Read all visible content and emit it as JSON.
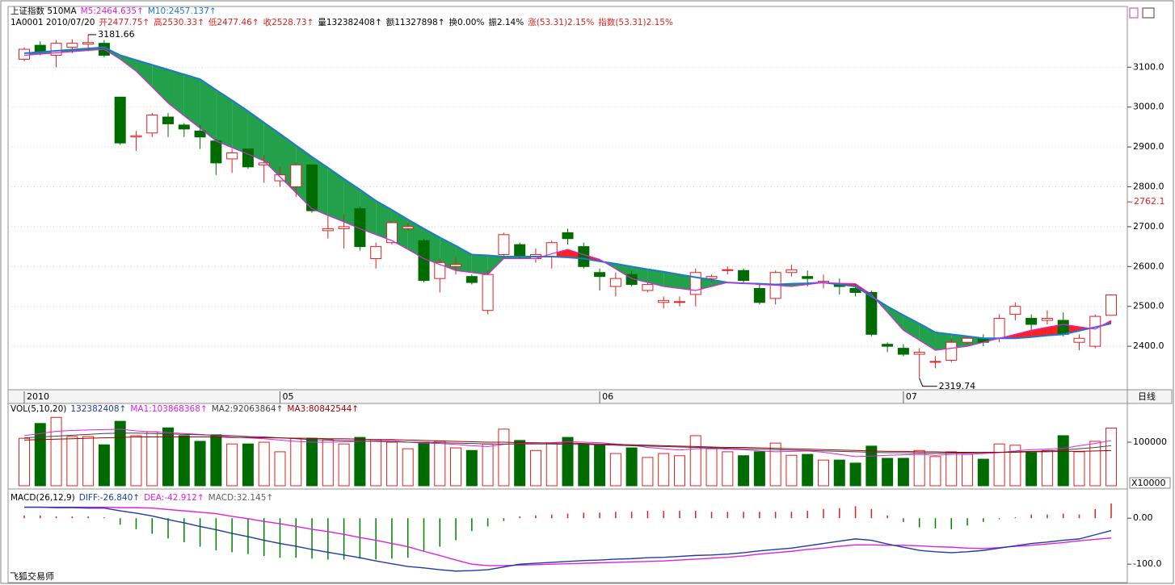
{
  "footer": "飞狐交易师",
  "period": "日线",
  "chart_data": [
    {
      "type": "candlestick",
      "legend": [
        {
          "text": "上证指数 510MA",
          "color": "#000000"
        },
        {
          "text": "M5:2464.635↑",
          "color": "#e020e0"
        },
        {
          "text": "M10:2457.137↑",
          "color": "#1e78d0"
        }
      ],
      "info": [
        {
          "text": "1A0001 2010/07/20",
          "color": "#000000"
        },
        {
          "text": "开2477.75↑",
          "color": "#e02020"
        },
        {
          "text": "高2530.33↑",
          "color": "#e02020"
        },
        {
          "text": "低2477.46↑",
          "color": "#e02020"
        },
        {
          "text": "收2528.73↑",
          "color": "#e02020"
        },
        {
          "text": "量132382408↑",
          "color": "#000000"
        },
        {
          "text": "额11327898↑",
          "color": "#000000"
        },
        {
          "text": "换0.00%",
          "color": "#000000"
        },
        {
          "text": "振2.14%",
          "color": "#000000"
        },
        {
          "text": "涨(53.31)2.15%",
          "color": "#e02020"
        },
        {
          "text": "指数(53.31)2.15%",
          "color": "#e02020"
        }
      ],
      "categories": [
        "2010",
        null,
        null,
        null,
        null,
        null,
        null,
        null,
        null,
        null,
        null,
        null,
        null,
        null,
        null,
        null,
        "05",
        null,
        null,
        null,
        null,
        null,
        null,
        null,
        null,
        null,
        null,
        null,
        null,
        null,
        null,
        null,
        null,
        null,
        null,
        null,
        "06",
        null,
        null,
        null,
        null,
        null,
        null,
        null,
        null,
        null,
        null,
        null,
        null,
        null,
        null,
        null,
        null,
        null,
        null,
        "07",
        null,
        null,
        null,
        null,
        null,
        null,
        null,
        null,
        null,
        null,
        null,
        null,
        null
      ],
      "open": [
        3120,
        3155,
        3130,
        3150,
        3158,
        3160,
        3025,
        2925,
        2935,
        2975,
        2955,
        2940,
        2915,
        2870,
        2895,
        2855,
        2815,
        2800,
        2855,
        2690,
        2695,
        2745,
        2620,
        2660,
        2695,
        2665,
        2570,
        2600,
        2575,
        2490,
        2630,
        2655,
        2620,
        2625,
        2685,
        2650,
        2585,
        2550,
        2580,
        2540,
        2510,
        2510,
        2530,
        2570,
        2590,
        2590,
        2545,
        2520,
        2585,
        2575,
        2560,
        2555,
        2545,
        2535,
        2405,
        2395,
        2380,
        2360,
        2365,
        2410,
        2420,
        2420,
        2480,
        2470,
        2465,
        2465,
        2410,
        2400,
        2477.75
      ],
      "high": [
        3150,
        3165,
        3168,
        3170,
        3181.66,
        3168,
        3025,
        2940,
        2985,
        2985,
        2960,
        2955,
        2920,
        2895,
        2895,
        2880,
        2850,
        2860,
        2855,
        2730,
        2730,
        2750,
        2660,
        2715,
        2710,
        2670,
        2620,
        2625,
        2580,
        2590,
        2685,
        2660,
        2645,
        2665,
        2695,
        2660,
        2595,
        2585,
        2590,
        2560,
        2525,
        2525,
        2595,
        2580,
        2600,
        2595,
        2555,
        2590,
        2605,
        2590,
        2580,
        2570,
        2555,
        2540,
        2410,
        2405,
        2395,
        2375,
        2420,
        2425,
        2430,
        2480,
        2510,
        2480,
        2490,
        2485,
        2430,
        2480,
        2530.33
      ],
      "low": [
        3115,
        3130,
        3100,
        3135,
        3140,
        3125,
        2905,
        2890,
        2925,
        2925,
        2925,
        2895,
        2830,
        2835,
        2845,
        2810,
        2800,
        2775,
        2735,
        2670,
        2645,
        2640,
        2595,
        2655,
        2690,
        2560,
        2535,
        2580,
        2555,
        2480,
        2620,
        2620,
        2610,
        2595,
        2655,
        2595,
        2540,
        2525,
        2550,
        2535,
        2495,
        2500,
        2500,
        2560,
        2580,
        2560,
        2505,
        2505,
        2575,
        2550,
        2545,
        2530,
        2525,
        2425,
        2385,
        2375,
        2319.74,
        2345,
        2360,
        2405,
        2400,
        2410,
        2465,
        2440,
        2455,
        2425,
        2390,
        2395,
        2477.46
      ],
      "close": [
        3145,
        3140,
        3160,
        3160,
        3162,
        3130,
        2910,
        2928,
        2980,
        2958,
        2945,
        2925,
        2860,
        2885,
        2850,
        2860,
        2830,
        2855,
        2740,
        2695,
        2700,
        2650,
        2650,
        2710,
        2700,
        2565,
        2610,
        2605,
        2560,
        2580,
        2680,
        2625,
        2630,
        2660,
        2670,
        2600,
        2575,
        2570,
        2555,
        2555,
        2515,
        2512,
        2585,
        2575,
        2592,
        2565,
        2510,
        2585,
        2592,
        2570,
        2563,
        2550,
        2535,
        2430,
        2400,
        2380,
        2385,
        2362,
        2410,
        2420,
        2410,
        2470,
        2500,
        2455,
        2470,
        2430,
        2420,
        2475,
        2528.73
      ],
      "ma5": [
        3130,
        3133,
        3136,
        3139,
        3142,
        3145,
        3120,
        3090,
        3050,
        3010,
        2978,
        2947,
        2915,
        2898,
        2882,
        2865,
        2825,
        2785,
        2745,
        2728,
        2712,
        2695,
        2680,
        2665,
        2643,
        2620,
        2605,
        2590,
        2585,
        2580,
        2620,
        2620,
        2620,
        2632,
        2643,
        2630,
        2618,
        2594,
        2570,
        2560,
        2550,
        2545,
        2540,
        2550,
        2560,
        2558,
        2555,
        2553,
        2550,
        2555,
        2560,
        2558,
        2557,
        2530,
        2485,
        2440,
        2415,
        2390,
        2395,
        2400,
        2410,
        2420,
        2430,
        2440,
        2448,
        2455,
        2449,
        2443,
        2464.635
      ],
      "ma10": [
        3135,
        3138,
        3141,
        3144,
        3147,
        3150,
        3130,
        3118,
        3106,
        3094,
        3082,
        3070,
        3043,
        3017,
        2990,
        2961,
        2933,
        2904,
        2875,
        2848,
        2820,
        2793,
        2765,
        2742,
        2718,
        2695,
        2673,
        2652,
        2630,
        2628,
        2625,
        2625,
        2625,
        2625,
        2623,
        2620,
        2613,
        2607,
        2600,
        2593,
        2587,
        2580,
        2573,
        2567,
        2560,
        2558,
        2557,
        2555,
        2557,
        2558,
        2560,
        2555,
        2550,
        2525,
        2500,
        2478,
        2457,
        2435,
        2430,
        2425,
        2420,
        2420,
        2420,
        2423,
        2427,
        2430,
        2439,
        2448,
        2457.137
      ],
      "ma5_color": "#e020e0",
      "ma10_color": "#1e78d0",
      "up_color": "#e02020",
      "down_color": "#006b00",
      "ribbon_down_color": "#22a04a",
      "ribbon_up_color": "#ff2020",
      "price_marker": 2762.1,
      "ylim": [
        2291,
        3252.4
      ],
      "yticks": [
        {
          "value": 3100,
          "label": "3100.0"
        },
        {
          "value": 3000,
          "label": "3000.0"
        },
        {
          "value": 2900,
          "label": "2900.0"
        },
        {
          "value": 2800,
          "label": "2800.0"
        },
        {
          "value": 2700,
          "label": "2700.0"
        },
        {
          "value": 2600,
          "label": "2600.0"
        },
        {
          "value": 2500,
          "label": "2500.0"
        },
        {
          "value": 2400,
          "label": "2400.0"
        }
      ],
      "grid": true
    },
    {
      "type": "volume",
      "legend": [
        {
          "text": "VOL(5,10,20)",
          "color": "#000000"
        },
        {
          "text": "132382408↑",
          "color": "#1e3ca0"
        },
        {
          "text": "MA1:103868368↑",
          "color": "#e020e0"
        },
        {
          "text": "MA2:92063864↑",
          "color": "#404040"
        },
        {
          "text": "MA3:80842544↑",
          "color": "#a00000"
        }
      ],
      "values": [
        109000,
        143000,
        157000,
        113000,
        113000,
        94000,
        148000,
        115000,
        124000,
        133000,
        115000,
        102000,
        117000,
        96000,
        96000,
        100000,
        78000,
        109000,
        109000,
        106000,
        96000,
        111000,
        106000,
        100000,
        85000,
        100000,
        102000,
        87000,
        81000,
        96000,
        130000,
        104000,
        81000,
        98000,
        111000,
        96000,
        93000,
        74000,
        87000,
        65000,
        74000,
        69000,
        115000,
        85000,
        78000,
        69000,
        78000,
        98000,
        70000,
        72000,
        59000,
        59000,
        52000,
        91000,
        63000,
        63000,
        81000,
        67000,
        78000,
        72000,
        61000,
        96000,
        93000,
        76000,
        81000,
        115000,
        78000,
        102000,
        132382
      ],
      "lines": [
        {
          "color": "#e020e0",
          "values": [
            115000,
            120000,
            125000,
            127000,
            128000,
            129000,
            130000,
            126000,
            124000,
            122000,
            120000,
            118000,
            115000,
            112000,
            110000,
            108000,
            105000,
            102000,
            100000,
            100000,
            101000,
            102000,
            103000,
            104000,
            100000,
            98000,
            97000,
            95000,
            92000,
            90000,
            95000,
            97000,
            98000,
            99000,
            101000,
            100000,
            99000,
            96000,
            93000,
            88000,
            85000,
            82000,
            85000,
            86000,
            84000,
            83000,
            80000,
            78000,
            79000,
            80000,
            77000,
            72000,
            67000,
            68000,
            70000,
            71000,
            72000,
            70000,
            72000,
            72000,
            74000,
            76000,
            80000,
            83000,
            84000,
            86000,
            92000,
            97000,
            103868
          ]
        },
        {
          "color": "#404040",
          "values": [
            110000,
            112000,
            114000,
            116000,
            118000,
            120000,
            121000,
            121000,
            120000,
            119000,
            118000,
            117000,
            116000,
            115000,
            113000,
            112000,
            110000,
            108000,
            106000,
            105000,
            104000,
            103000,
            102000,
            101000,
            100000,
            100000,
            99000,
            98000,
            97000,
            96000,
            96000,
            96000,
            96000,
            96000,
            95000,
            95000,
            94000,
            93000,
            92000,
            91000,
            90000,
            89000,
            88000,
            87000,
            86000,
            85000,
            84000,
            83000,
            82000,
            81000,
            80000,
            79000,
            78000,
            77000,
            76000,
            76000,
            75000,
            75000,
            75000,
            75000,
            76000,
            77000,
            78000,
            79000,
            80000,
            82000,
            85000,
            88000,
            92063
          ]
        },
        {
          "color": "#a00000",
          "values": [
            105000,
            106000,
            107000,
            108000,
            109000,
            110000,
            111000,
            112000,
            112000,
            112000,
            112000,
            112000,
            112000,
            111000,
            111000,
            110000,
            110000,
            109000,
            109000,
            108000,
            108000,
            107000,
            106000,
            106000,
            105000,
            104000,
            103000,
            102000,
            101000,
            100000,
            100000,
            99000,
            99000,
            98000,
            98000,
            97000,
            96000,
            95000,
            94000,
            93000,
            92000,
            91000,
            90000,
            89000,
            88000,
            88000,
            87000,
            86000,
            85000,
            84000,
            83000,
            82000,
            81000,
            80000,
            79000,
            79000,
            78000,
            78000,
            77000,
            77000,
            77000,
            77000,
            77000,
            78000,
            78000,
            79000,
            79000,
            80000,
            80842
          ]
        }
      ],
      "unit": "X10000",
      "ylim": [
        0,
        189000
      ],
      "yticks": [
        100000
      ]
    },
    {
      "type": "macd",
      "legend": [
        {
          "text": "MACD(26,12,9)",
          "color": "#000000"
        },
        {
          "text": "DIFF:-26.840↑",
          "color": "#1e3ca0"
        },
        {
          "text": "DEA:-42.912↑",
          "color": "#e020e0"
        },
        {
          "text": "MACD:32.145↑",
          "color": "#606060"
        }
      ],
      "diff": [
        24,
        24,
        23,
        23,
        22,
        22,
        16,
        11,
        5,
        -3,
        -10,
        -18,
        -25,
        -33,
        -40,
        -48,
        -55,
        -61,
        -68,
        -74,
        -80,
        -86,
        -93,
        -99,
        -105,
        -108,
        -112,
        -115,
        -114,
        -112,
        -106,
        -100,
        -98,
        -96,
        -94,
        -92,
        -91,
        -89,
        -88,
        -86,
        -85,
        -83,
        -81,
        -80,
        -78,
        -75,
        -71,
        -68,
        -65,
        -60,
        -55,
        -50,
        -45,
        -48,
        -56,
        -63,
        -70,
        -73,
        -75,
        -73,
        -70,
        -65,
        -60,
        -55,
        -52,
        -48,
        -45,
        -36,
        -26.84
      ],
      "dea": [
        24,
        24,
        24,
        24,
        24,
        24,
        23,
        23,
        22,
        19,
        16,
        13,
        10,
        4,
        -1,
        -7,
        -12,
        -18,
        -24,
        -29,
        -35,
        -42,
        -48,
        -55,
        -62,
        -72,
        -81,
        -91,
        -100,
        -103,
        -103,
        -102,
        -101,
        -100,
        -99,
        -98,
        -97,
        -96,
        -95,
        -94,
        -93,
        -91,
        -89,
        -87,
        -85,
        -82,
        -78,
        -75,
        -72,
        -68,
        -65,
        -61,
        -58,
        -58,
        -59,
        -59,
        -60,
        -62,
        -63,
        -65,
        -66,
        -64,
        -61,
        -59,
        -56,
        -53,
        -49,
        -46,
        -42.912
      ],
      "macd": [
        6,
        6,
        4,
        4,
        4,
        2,
        -14,
        -24,
        -34,
        -44,
        -52,
        -62,
        -70,
        -74,
        -78,
        -82,
        -86,
        -86,
        -88,
        -90,
        -90,
        -88,
        -90,
        -88,
        -86,
        -72,
        -62,
        -48,
        -28,
        -18,
        -6,
        4,
        6,
        8,
        10,
        12,
        12,
        14,
        14,
        16,
        16,
        16,
        16,
        14,
        14,
        14,
        14,
        14,
        14,
        16,
        20,
        22,
        26,
        20,
        6,
        -8,
        -20,
        -22,
        -24,
        -16,
        -8,
        -2,
        2,
        8,
        8,
        10,
        8,
        20,
        32.145
      ],
      "diff_color": "#1e3ca0",
      "dea_color": "#e020e0",
      "up_color": "#e02020",
      "down_color": "#008000",
      "ylim": [
        -140,
        63.6
      ],
      "yticks": [
        {
          "value": 0,
          "label": "0.00"
        },
        {
          "value": -100,
          "label": "-100.0"
        }
      ]
    }
  ]
}
